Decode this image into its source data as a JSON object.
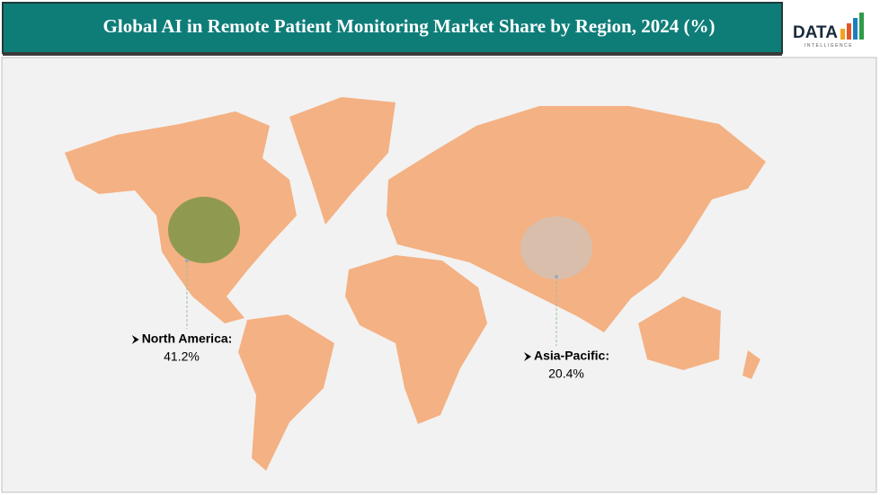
{
  "title": "Global AI in Remote Patient Monitoring Market Share by Region, 2024 (%)",
  "logo": {
    "text": "DATA",
    "subtext": "INTELLIGENCE"
  },
  "regions": [
    {
      "name": "North America:",
      "value": 41.2,
      "value_label": "41.2%"
    },
    {
      "name": "Asia-Pacific:",
      "value": 20.4,
      "value_label": "20.4%"
    }
  ]
}
